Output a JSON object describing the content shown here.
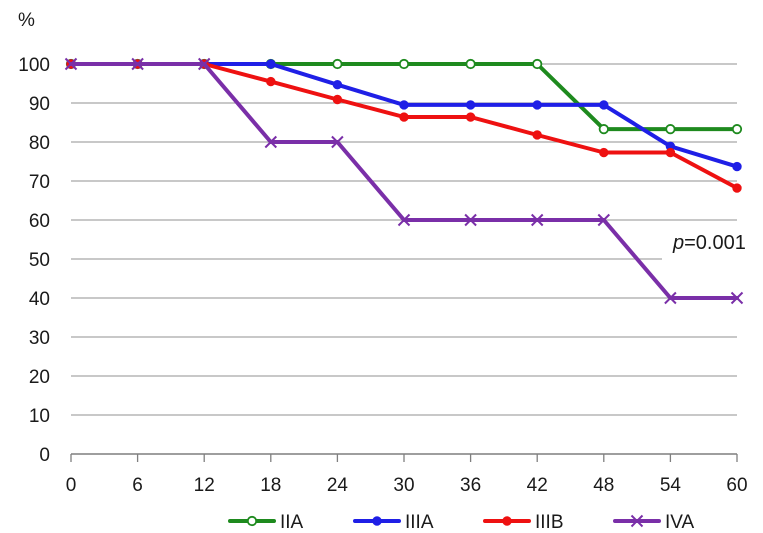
{
  "chart_data": {
    "type": "line",
    "y_unit_label": "%",
    "x": [
      0,
      6,
      12,
      18,
      24,
      30,
      36,
      42,
      48,
      54,
      60
    ],
    "xlim": [
      0,
      60
    ],
    "ylim": [
      0,
      100
    ],
    "yticks": [
      0,
      10,
      20,
      30,
      40,
      50,
      60,
      70,
      80,
      90,
      100
    ],
    "grid": "horizontal",
    "legend_position": "bottom",
    "annotation": {
      "italic": "p",
      "rest": "=0.001"
    },
    "series": [
      {
        "name": "IIA",
        "color": "#1e8a1e",
        "marker": "open-circle",
        "values": [
          100,
          100,
          100,
          100,
          100,
          100,
          100,
          100,
          83.3,
          83.3,
          83.3
        ]
      },
      {
        "name": "IIIA",
        "color": "#1f1fe6",
        "marker": "filled-circle",
        "values": [
          100,
          100,
          100,
          100,
          94.7,
          89.5,
          89.5,
          89.5,
          89.5,
          78.9,
          73.7
        ]
      },
      {
        "name": "IIIB",
        "color": "#ee1111",
        "marker": "filled-circle",
        "values": [
          100,
          100,
          100,
          95.5,
          90.9,
          86.4,
          86.4,
          81.8,
          77.3,
          77.3,
          68.2
        ]
      },
      {
        "name": "IVA",
        "color": "#7a2fa8",
        "marker": "x",
        "values": [
          100,
          100,
          100,
          80,
          80,
          60,
          60,
          60,
          60,
          40,
          40
        ]
      }
    ]
  }
}
